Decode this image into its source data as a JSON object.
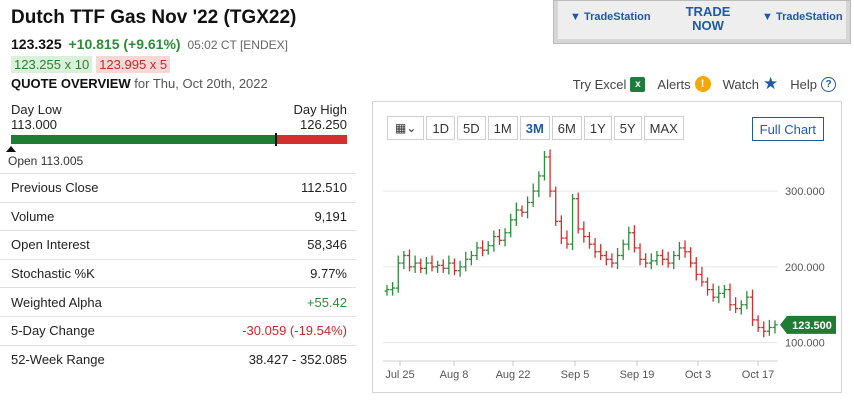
{
  "header": {
    "title": "Dutch TTF Gas Nov '22 (TGX22)",
    "last": "123.325",
    "change": "+10.815 (+9.61%)",
    "time": "05:02 CT [ENDEX]",
    "bid": "123.255 x 10",
    "ask": "123.995 x 5",
    "quote_overview": "QUOTE OVERVIEW",
    "quote_date": "for Thu, Oct 20th, 2022"
  },
  "ad": {
    "logo_left": "TradeStation",
    "cta_line1": "TRADE",
    "cta_line2": "NOW",
    "logo_right": "TradeStation"
  },
  "links": {
    "excel": "Try Excel",
    "alerts": "Alerts",
    "watch": "Watch",
    "help": "Help"
  },
  "day_range": {
    "low_label": "Day Low",
    "low": "113.000",
    "high_label": "Day High",
    "high": "126.250",
    "open_label": "Open 113.005",
    "fill_fraction": 0.785,
    "marker_fraction": 0.785
  },
  "stats": [
    {
      "label": "Previous Close",
      "value": "112.510",
      "tone": ""
    },
    {
      "label": "Volume",
      "value": "9,191",
      "tone": ""
    },
    {
      "label": "Open Interest",
      "value": "58,346",
      "tone": ""
    },
    {
      "label": "Stochastic %K",
      "value": "9.77%",
      "tone": ""
    },
    {
      "label": "Weighted Alpha",
      "value": "+55.42",
      "tone": "pos"
    },
    {
      "label": "5-Day Change",
      "value": "-30.059 (-19.54%)",
      "tone": "neg"
    },
    {
      "label": "52-Week Range",
      "value": "38.427 - 352.085",
      "tone": ""
    }
  ],
  "chart_toolbar": {
    "type_icon": "candlestick-dropdown-icon",
    "periods": [
      "1D",
      "5D",
      "1M",
      "3M",
      "6M",
      "1Y",
      "5Y",
      "MAX"
    ],
    "active_period": "3M",
    "full_chart": "Full Chart"
  },
  "colors": {
    "up": "#2e8b3a",
    "down": "#d32f2f",
    "accent": "#1e5aa8",
    "last_price_tag": "#1e7d32"
  },
  "chart_data": {
    "type": "line",
    "style": "ohlc-bars",
    "x_tick_labels": [
      "Jul 25",
      "Aug 8",
      "Aug 22",
      "Sep 5",
      "Sep 19",
      "Oct 3",
      "Oct 17"
    ],
    "y_tick_labels": [
      "100.000",
      "200.000",
      "300.000"
    ],
    "y_ticks": [
      100,
      200,
      300
    ],
    "ylim": [
      85,
      345
    ],
    "last_price_label": "123.500",
    "last_price": 123.5,
    "grid": true,
    "closes": [
      170,
      172,
      205,
      215,
      200,
      205,
      198,
      205,
      200,
      202,
      198,
      205,
      195,
      200,
      210,
      215,
      225,
      222,
      228,
      240,
      235,
      245,
      262,
      275,
      272,
      285,
      300,
      320,
      345,
      300,
      260,
      238,
      230,
      290,
      250,
      240,
      230,
      220,
      215,
      210,
      205,
      215,
      230,
      245,
      225,
      210,
      205,
      208,
      215,
      210,
      205,
      215,
      225,
      220,
      205,
      190,
      180,
      170,
      160,
      165,
      170,
      150,
      145,
      150,
      160,
      130,
      120,
      115,
      120,
      123.5
    ]
  }
}
